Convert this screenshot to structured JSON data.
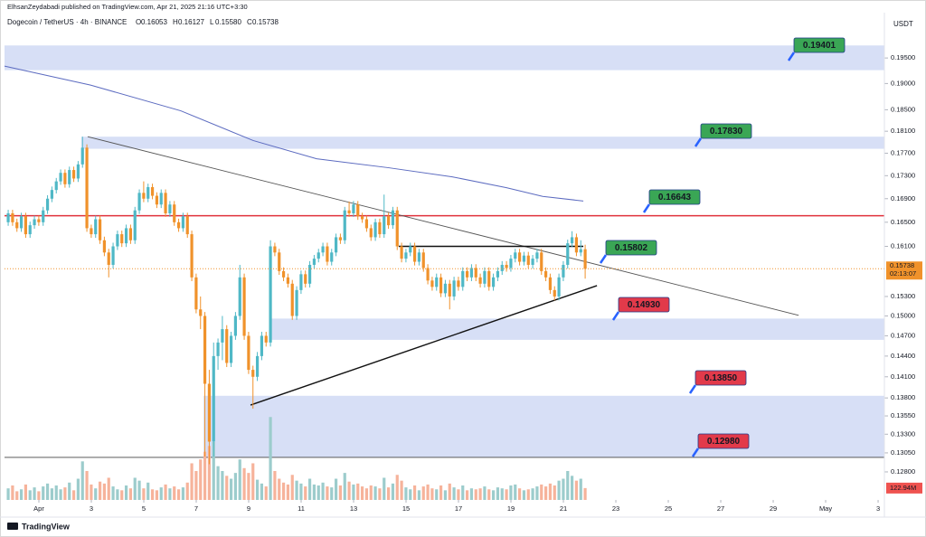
{
  "chart_data": {
    "type": "candlestick",
    "publisher": "ElhsanZeydabadi published on TradingView.com, Apr 21, 2025 21:16 UTC+3:30",
    "symbol": "Dogecoin / TetherUS · 4h · BINANCE",
    "ohlc_letters": [
      "O",
      "H",
      "L",
      "C"
    ],
    "last_labels": {
      "open": "0.16053",
      "high": "0.16127",
      "low": "0.15580",
      "close": "0.15738"
    },
    "countdown": "02:13:07",
    "currency": "USDT",
    "brand": "TradingView",
    "log_scale": true,
    "grid": false,
    "up_color": "#4fb8c6",
    "down_color": "#f0922b",
    "ylim": [
      0.1244,
      0.2042
    ],
    "yticks": [
      {
        "value": 0.195,
        "label": "0.19500"
      },
      {
        "value": 0.19,
        "label": "0.19000"
      },
      {
        "value": 0.185,
        "label": "0.18500"
      },
      {
        "value": 0.181,
        "label": "0.18100"
      },
      {
        "value": 0.177,
        "label": "0.17700"
      },
      {
        "value": 0.173,
        "label": "0.17300"
      },
      {
        "value": 0.169,
        "label": "0.16900"
      },
      {
        "value": 0.165,
        "label": "0.16500"
      },
      {
        "value": 0.161,
        "label": "0.16100"
      },
      {
        "value": 0.153,
        "label": "0.15300"
      },
      {
        "value": 0.15,
        "label": "0.15000"
      },
      {
        "value": 0.147,
        "label": "0.14700"
      },
      {
        "value": 0.144,
        "label": "0.14400"
      },
      {
        "value": 0.141,
        "label": "0.14100"
      },
      {
        "value": 0.138,
        "label": "0.13800"
      },
      {
        "value": 0.1355,
        "label": "0.13550"
      },
      {
        "value": 0.133,
        "label": "0.13300"
      },
      {
        "value": 0.1305,
        "label": "0.13050"
      },
      {
        "value": 0.128,
        "label": "0.12800"
      }
    ],
    "xlim": [
      -0.31,
      33.24
    ],
    "xticks": [
      {
        "value": 1,
        "label": "Apr"
      },
      3,
      5,
      7,
      9,
      11,
      13,
      15,
      17,
      19,
      21,
      23,
      25,
      27,
      29,
      {
        "value": 31,
        "label": "May"
      },
      {
        "value": 33,
        "label": "3"
      }
    ],
    "open": [
      0.165,
      0.1665,
      0.165,
      0.164,
      0.166,
      0.163,
      0.1645,
      0.1655,
      0.165,
      0.167,
      0.169,
      0.1705,
      0.172,
      0.1735,
      0.1715,
      0.174,
      0.1725,
      0.175,
      0.178,
      0.164,
      0.163,
      0.1655,
      0.162,
      0.16,
      0.158,
      0.161,
      0.163,
      0.1615,
      0.164,
      0.162,
      0.167,
      0.17,
      0.169,
      0.171,
      0.1695,
      0.168,
      0.17,
      0.1665,
      0.168,
      0.165,
      0.164,
      0.166,
      0.163,
      0.156,
      0.151,
      0.15,
      0.14,
      0.132,
      0.144,
      0.146,
      0.148,
      0.143,
      0.147,
      0.15,
      0.156,
      0.147,
      0.142,
      0.141,
      0.144,
      0.147,
      0.146,
      0.161,
      0.16,
      0.157,
      0.156,
      0.155,
      0.15,
      0.154,
      0.1565,
      0.155,
      0.158,
      0.159,
      0.16,
      0.161,
      0.1585,
      0.16,
      0.1625,
      0.162,
      0.167,
      0.1665,
      0.168,
      0.166,
      0.1655,
      0.164,
      0.1625,
      0.165,
      0.163,
      0.166,
      0.1645,
      0.167,
      0.161,
      0.159,
      0.16,
      0.161,
      0.1585,
      0.16,
      0.1575,
      0.1555,
      0.1545,
      0.156,
      0.1535,
      0.155,
      0.153,
      0.1555,
      0.1545,
      0.157,
      0.156,
      0.1575,
      0.156,
      0.155,
      0.157,
      0.1545,
      0.156,
      0.157,
      0.158,
      0.1575,
      0.159,
      0.16,
      0.1585,
      0.1595,
      0.158,
      0.159,
      0.16,
      0.157,
      0.156,
      0.154,
      0.153,
      0.156,
      0.158,
      0.1615,
      0.1625,
      0.16,
      0.16053
    ],
    "high": [
      0.1671,
      0.1671,
      0.1656,
      0.1666,
      0.1666,
      0.1651,
      0.1661,
      0.1661,
      0.1676,
      0.1696,
      0.1711,
      0.1726,
      0.1741,
      0.1741,
      0.1746,
      0.1746,
      0.1756,
      0.18,
      0.1786,
      0.1646,
      0.1661,
      0.1661,
      0.1626,
      0.1606,
      0.1616,
      0.1636,
      0.1636,
      0.1646,
      0.1646,
      0.1676,
      0.1706,
      0.172,
      0.1716,
      0.1716,
      0.1701,
      0.1706,
      0.1706,
      0.1686,
      0.1686,
      0.1656,
      0.1666,
      0.1666,
      0.1636,
      0.1566,
      0.153,
      0.1506,
      0.142,
      0.146,
      0.1466,
      0.15,
      0.1486,
      0.1476,
      0.1506,
      0.158,
      0.1566,
      0.1476,
      0.1426,
      0.1446,
      0.1476,
      0.1476,
      0.162,
      0.1616,
      0.1606,
      0.1576,
      0.1566,
      0.1556,
      0.1546,
      0.1571,
      0.1571,
      0.1586,
      0.1596,
      0.1606,
      0.1616,
      0.1616,
      0.1606,
      0.1631,
      0.1631,
      0.1676,
      0.1685,
      0.1686,
      0.1686,
      0.1666,
      0.1661,
      0.1646,
      0.1656,
      0.1656,
      0.1697,
      0.1666,
      0.1676,
      0.1676,
      0.1616,
      0.1606,
      0.1616,
      0.1616,
      0.1606,
      0.1606,
      0.1581,
      0.1561,
      0.1566,
      0.1566,
      0.1556,
      0.1556,
      0.1561,
      0.1561,
      0.1576,
      0.1576,
      0.1581,
      0.1581,
      0.1566,
      0.1576,
      0.1576,
      0.1566,
      0.1576,
      0.1586,
      0.1586,
      0.1596,
      0.1606,
      0.1606,
      0.1601,
      0.1601,
      0.1596,
      0.1606,
      0.1606,
      0.1576,
      0.1566,
      0.1546,
      0.1566,
      0.1586,
      0.1621,
      0.1635,
      0.1631,
      0.162,
      0.16127
    ],
    "low": [
      0.1644,
      0.1644,
      0.1634,
      0.1634,
      0.1624,
      0.1624,
      0.1639,
      0.1644,
      0.1644,
      0.1664,
      0.1684,
      0.1699,
      0.1714,
      0.1709,
      0.1709,
      0.1719,
      0.1719,
      0.1744,
      0.1634,
      0.1624,
      0.1624,
      0.1614,
      0.1594,
      0.156,
      0.1574,
      0.1604,
      0.1609,
      0.1609,
      0.1614,
      0.1614,
      0.1664,
      0.1684,
      0.1684,
      0.1689,
      0.1674,
      0.1674,
      0.1659,
      0.1659,
      0.1644,
      0.1634,
      0.1634,
      0.1624,
      0.1554,
      0.1504,
      0.148,
      0.13,
      0.129,
      0.13,
      0.142,
      0.1434,
      0.1424,
      0.1424,
      0.1464,
      0.1494,
      0.1464,
      0.1414,
      0.1365,
      0.1404,
      0.1434,
      0.1454,
      0.1454,
      0.1594,
      0.1564,
      0.1554,
      0.1544,
      0.1494,
      0.1494,
      0.1534,
      0.1544,
      0.1544,
      0.1574,
      0.1584,
      0.1594,
      0.1579,
      0.1579,
      0.1594,
      0.1614,
      0.1614,
      0.1659,
      0.1659,
      0.1654,
      0.1649,
      0.1634,
      0.1619,
      0.1619,
      0.1624,
      0.1624,
      0.1639,
      0.1639,
      0.1604,
      0.1584,
      0.1584,
      0.1594,
      0.1579,
      0.1579,
      0.1569,
      0.1549,
      0.1539,
      0.1539,
      0.1529,
      0.1529,
      0.151,
      0.1524,
      0.1539,
      0.1539,
      0.1554,
      0.1554,
      0.1554,
      0.1544,
      0.1544,
      0.1539,
      0.1539,
      0.1554,
      0.1564,
      0.1569,
      0.1569,
      0.1584,
      0.1579,
      0.1579,
      0.1574,
      0.1574,
      0.1584,
      0.1564,
      0.1554,
      0.1534,
      0.1524,
      0.1524,
      0.1554,
      0.1574,
      0.1609,
      0.1594,
      0.1594,
      0.1558
    ],
    "close": [
      0.1665,
      0.165,
      0.164,
      0.166,
      0.163,
      0.1645,
      0.1655,
      0.165,
      0.167,
      0.169,
      0.1705,
      0.172,
      0.1735,
      0.1715,
      0.174,
      0.1725,
      0.175,
      0.178,
      0.164,
      0.163,
      0.1655,
      0.162,
      0.16,
      0.158,
      0.161,
      0.163,
      0.1615,
      0.164,
      0.162,
      0.167,
      0.17,
      0.169,
      0.171,
      0.1695,
      0.168,
      0.17,
      0.1665,
      0.168,
      0.165,
      0.164,
      0.166,
      0.163,
      0.156,
      0.151,
      0.15,
      0.14,
      0.132,
      0.144,
      0.146,
      0.148,
      0.143,
      0.147,
      0.15,
      0.156,
      0.147,
      0.142,
      0.141,
      0.144,
      0.147,
      0.146,
      0.161,
      0.16,
      0.157,
      0.156,
      0.155,
      0.15,
      0.154,
      0.1565,
      0.155,
      0.158,
      0.159,
      0.16,
      0.161,
      0.1585,
      0.16,
      0.1625,
      0.162,
      0.167,
      0.1665,
      0.168,
      0.166,
      0.1655,
      0.164,
      0.1625,
      0.165,
      0.163,
      0.166,
      0.1645,
      0.167,
      0.161,
      0.159,
      0.16,
      0.161,
      0.1585,
      0.16,
      0.1575,
      0.1555,
      0.1545,
      0.156,
      0.1535,
      0.155,
      0.153,
      0.1555,
      0.1545,
      0.157,
      0.156,
      0.1575,
      0.156,
      0.155,
      0.157,
      0.1545,
      0.156,
      0.157,
      0.158,
      0.1575,
      0.159,
      0.16,
      0.1585,
      0.1595,
      0.158,
      0.159,
      0.16,
      0.157,
      0.156,
      0.154,
      0.153,
      0.156,
      0.158,
      0.1615,
      0.1625,
      0.16,
      0.16053,
      0.15738
    ],
    "volume": {
      "ylim": [
        0,
        1500
      ],
      "last_label": "122.94M",
      "up_color": "#9ccccc",
      "down_color": "#f6b39b",
      "values": [
        120,
        150,
        90,
        110,
        160,
        100,
        130,
        90,
        140,
        170,
        120,
        150,
        110,
        130,
        180,
        100,
        220,
        400,
        300,
        160,
        120,
        190,
        170,
        230,
        140,
        110,
        100,
        150,
        120,
        230,
        200,
        120,
        180,
        110,
        100,
        130,
        160,
        120,
        140,
        110,
        130,
        180,
        380,
        300,
        420,
        500,
        560,
        600,
        350,
        300,
        250,
        220,
        280,
        420,
        330,
        280,
        380,
        210,
        170,
        140,
        860,
        300,
        220,
        180,
        160,
        260,
        200,
        170,
        140,
        220,
        160,
        150,
        180,
        140,
        130,
        220,
        150,
        280,
        190,
        160,
        170,
        140,
        120,
        150,
        140,
        120,
        230,
        130,
        170,
        260,
        200,
        130,
        110,
        150,
        100,
        140,
        160,
        120,
        110,
        150,
        100,
        170,
        130,
        110,
        150,
        100,
        120,
        110,
        120,
        140,
        110,
        100,
        130,
        120,
        110,
        150,
        160,
        120,
        100,
        110,
        120,
        140,
        160,
        140,
        170,
        150,
        200,
        220,
        300,
        250,
        200,
        220,
        122.94
      ]
    },
    "zones": [
      {
        "start": -0.31,
        "top": 0.1975,
        "bottom": 0.1926
      },
      {
        "start": 2.62,
        "top": 0.18,
        "bottom": 0.1778
      },
      {
        "start": 9.79,
        "top": 0.1496,
        "bottom": 0.1464
      },
      {
        "start": 7.28,
        "top": 0.1383,
        "bottom": 0.1299
      }
    ],
    "zone_color": "#d3dcf5",
    "resistance": {
      "value": 0.1661,
      "color": "#e0313c"
    },
    "lines": [
      {
        "x": [
          2.86,
          29.97
        ],
        "values": [
          0.18,
          0.1501
        ],
        "color": "#555555"
      },
      {
        "x": [
          9.07,
          22.28
        ],
        "values": [
          0.137,
          0.1547
        ],
        "color": "#111111"
      },
      {
        "x": [
          14.72,
          21.76
        ],
        "values": [
          0.161,
          0.161
        ],
        "color": "#111111"
      }
    ],
    "ma": {
      "color": "#5c6bc0",
      "x": [
        -0.31,
        2.97,
        6.41,
        9.17,
        11.59,
        14.34,
        16.76,
        18.83,
        20.21,
        21.76
      ],
      "values": [
        0.1934,
        0.1897,
        0.1848,
        0.1793,
        0.176,
        0.1744,
        0.1728,
        0.1709,
        0.1694,
        0.1686
      ]
    },
    "levels": [
      {
        "value": 0.19401,
        "label": "0.19401",
        "color": "#3aa655"
      },
      {
        "value": 0.1783,
        "label": "0.17830",
        "color": "#3aa655"
      },
      {
        "value": 0.16643,
        "label": "0.16643",
        "color": "#3aa655"
      },
      {
        "value": 0.15802,
        "label": "0.15802",
        "color": "#3aa655"
      },
      {
        "value": 0.1493,
        "label": "0.14930",
        "color": "#e23a4a"
      },
      {
        "value": 0.1385,
        "label": "0.13850",
        "color": "#e23a4a"
      },
      {
        "value": 0.1298,
        "label": "0.12980",
        "color": "#e23a4a"
      }
    ]
  }
}
